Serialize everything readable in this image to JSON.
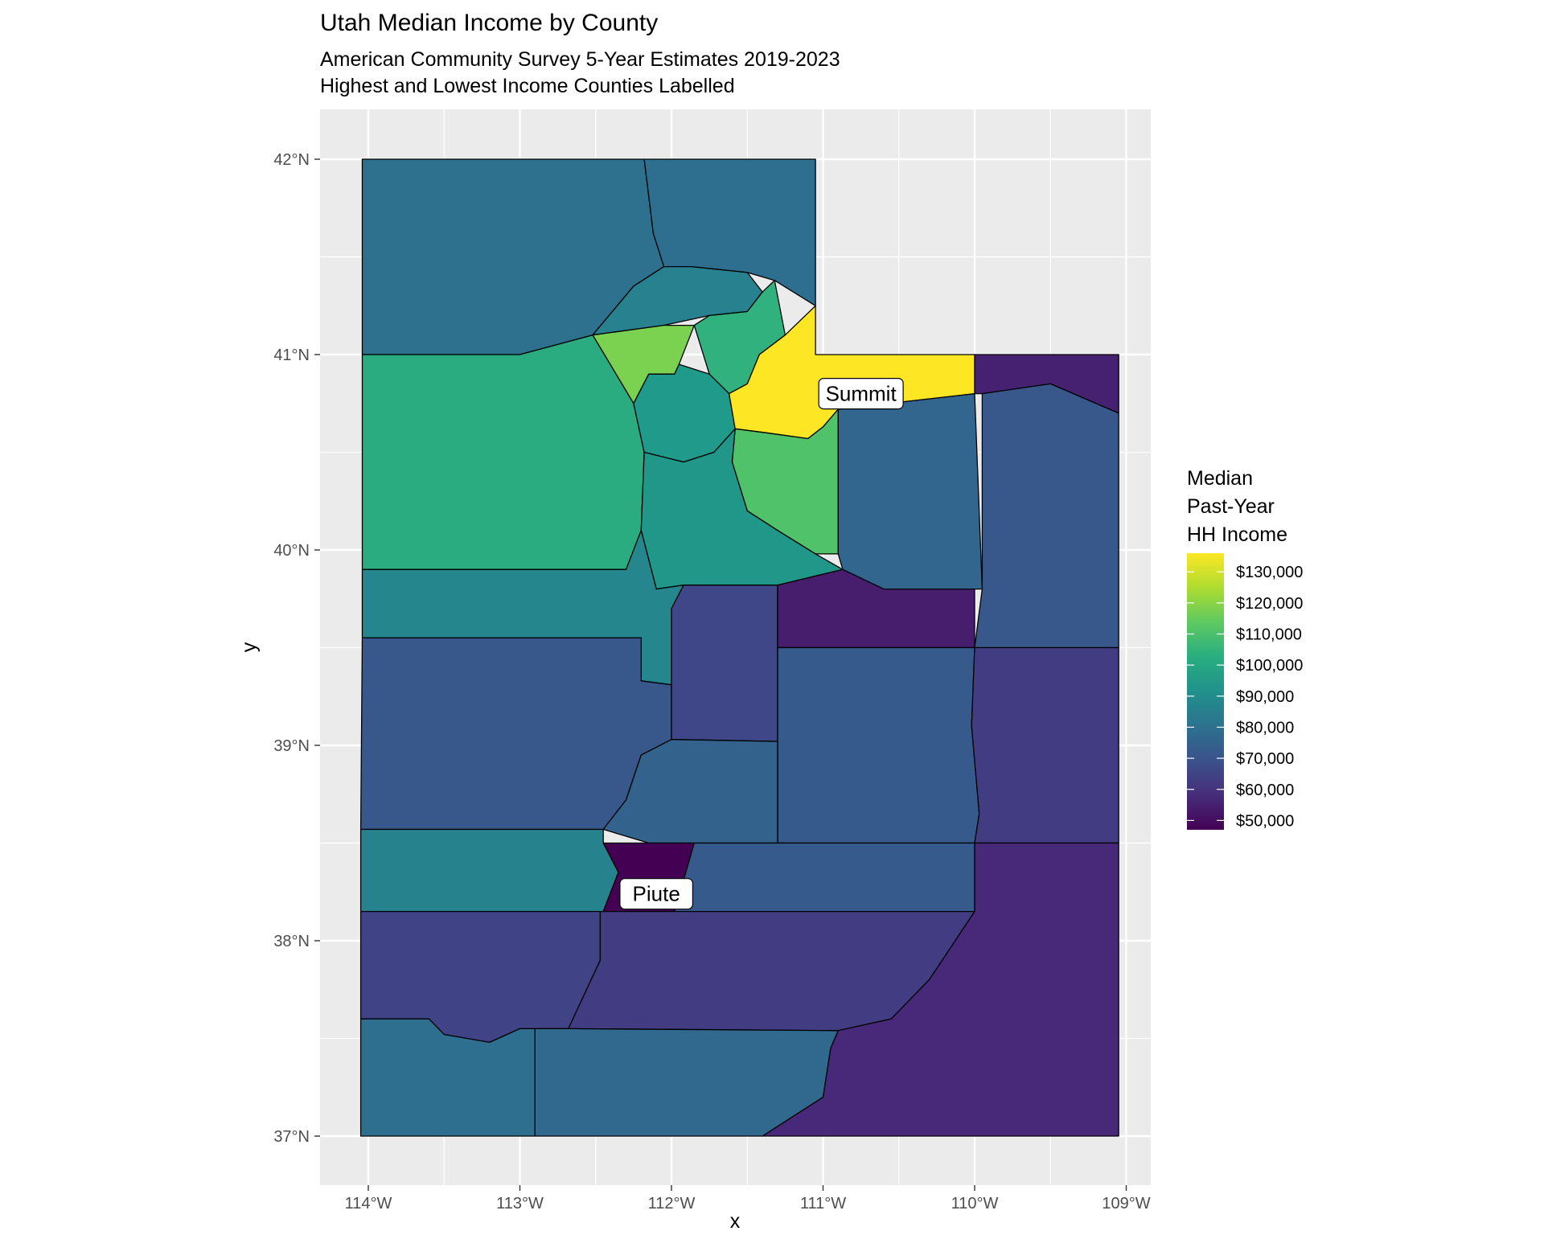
{
  "title": "Utah Median Income by County",
  "subtitle_line1": "American Community Survey 5-Year Estimates 2019-2023",
  "subtitle_line2": "Highest and Lowest Income Counties Labelled",
  "x_axis_title": "x",
  "y_axis_title": "y",
  "x_ticks": [
    "114°W",
    "113°W",
    "112°W",
    "111°W",
    "110°W",
    "109°W"
  ],
  "y_ticks": [
    "42°N",
    "41°N",
    "40°N",
    "39°N",
    "38°N",
    "37°N"
  ],
  "legend": {
    "title_line1": "Median",
    "title_line2": "Past-Year",
    "title_line3": "HH Income",
    "labels": [
      "$130,000",
      "$120,000",
      "$110,000",
      "$100,000",
      "$90,000",
      "$80,000",
      "$70,000",
      "$60,000",
      "$50,000"
    ]
  },
  "chart_data": {
    "type": "choropleth",
    "lon_range": [
      -114.3,
      -108.8
    ],
    "lat_range": [
      36.77,
      42.25
    ],
    "color_scale": {
      "palette": "viridis",
      "min_value": 47000,
      "max_value": 136000,
      "breaks": [
        50000,
        60000,
        70000,
        80000,
        90000,
        100000,
        110000,
        120000,
        130000
      ]
    },
    "regions": [
      {
        "id": "northwest",
        "value": 80000
      },
      {
        "id": "north-central-east",
        "value": 79000
      },
      {
        "id": "weber-area",
        "value": 86000
      },
      {
        "id": "davis-area",
        "value": 118000
      },
      {
        "id": "wasatch-front-mid",
        "value": 104000
      },
      {
        "id": "tooele",
        "value": 102000
      },
      {
        "id": "salt-lake",
        "value": 95000
      },
      {
        "id": "summit",
        "value": 136000
      },
      {
        "id": "wasatch",
        "value": 111000
      },
      {
        "id": "utah",
        "value": 94000
      },
      {
        "id": "duchesne",
        "value": 76000
      },
      {
        "id": "daggett",
        "value": 55000
      },
      {
        "id": "uintah",
        "value": 71000
      },
      {
        "id": "juab",
        "value": 88000
      },
      {
        "id": "millard",
        "value": 71000
      },
      {
        "id": "sanpete",
        "value": 66000
      },
      {
        "id": "carbon",
        "value": 54000
      },
      {
        "id": "emery",
        "value": 72000
      },
      {
        "id": "grand",
        "value": 63000
      },
      {
        "id": "sevier",
        "value": 75000
      },
      {
        "id": "beaver",
        "value": 87000
      },
      {
        "id": "piute",
        "value": 47000
      },
      {
        "id": "wayne",
        "value": 72000
      },
      {
        "id": "iron",
        "value": 65000
      },
      {
        "id": "garfield",
        "value": 63000
      },
      {
        "id": "san-juan",
        "value": 57000
      },
      {
        "id": "washington",
        "value": 79000
      },
      {
        "id": "kane",
        "value": 77000
      }
    ],
    "labels": [
      {
        "text": "Summit",
        "lon": -110.75,
        "lat": 40.8
      },
      {
        "text": "Piute",
        "lon": -112.1,
        "lat": 38.24
      }
    ]
  }
}
